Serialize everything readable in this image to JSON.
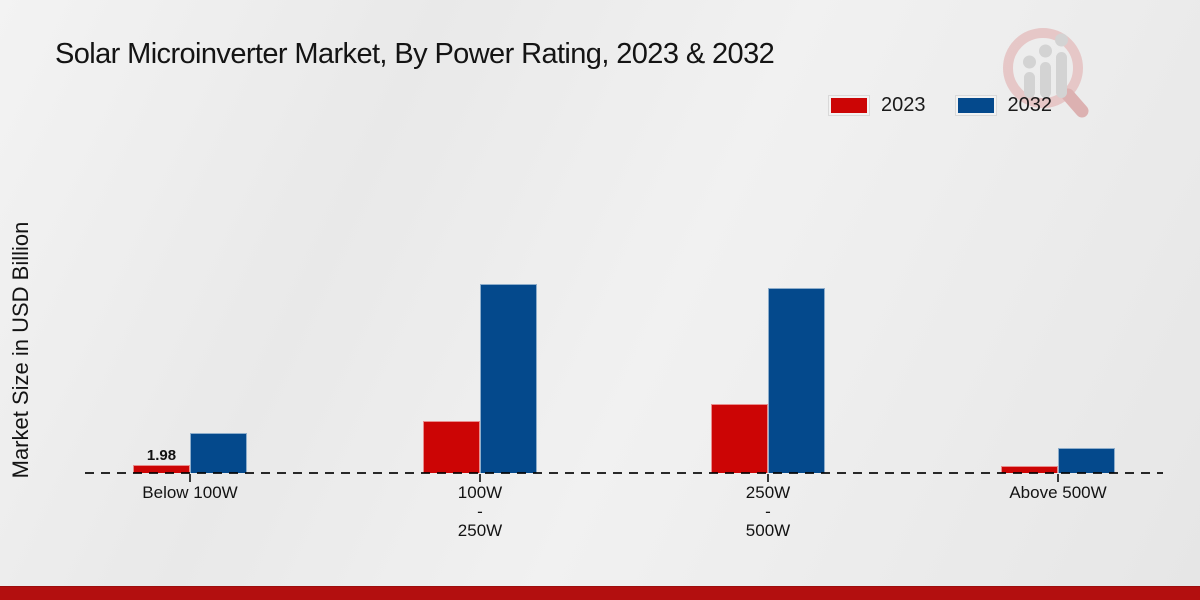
{
  "page": {
    "title": "Solar Microinverter Market, By Power Rating, 2023 & 2032",
    "footer_bar_color": "#b30f0f",
    "logo_name": "market-research-future-watermark"
  },
  "chart_data": {
    "type": "bar",
    "title": "Solar Microinverter Market, By Power Rating, 2023 & 2032",
    "xlabel": "",
    "ylabel": "Market Size in USD Billion",
    "categories": [
      "Below 100W",
      "100W - 250W",
      "250W - 500W",
      "Above 500W"
    ],
    "category_display_lines": [
      [
        "Below 100W"
      ],
      [
        "100W",
        "-",
        "250W"
      ],
      [
        "250W",
        "-",
        "500W"
      ],
      [
        "Above 500W"
      ]
    ],
    "series": [
      {
        "name": "2023",
        "color": "#cc0505",
        "values": [
          1.98,
          13.5,
          18.0,
          1.8
        ],
        "value_labels": [
          "1.98",
          "",
          "",
          ""
        ]
      },
      {
        "name": "2032",
        "color": "#04498c",
        "values": [
          10.5,
          49.0,
          48.0,
          6.4
        ],
        "value_labels": [
          "",
          "",
          "",
          ""
        ]
      }
    ],
    "ylim": [
      0,
      52
    ],
    "grid": false,
    "y_axis_ticks_visible": false,
    "baseline_style": "dashed",
    "legend_position": "top-right"
  }
}
